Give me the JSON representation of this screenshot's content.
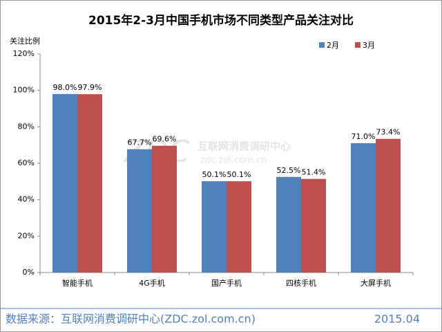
{
  "chart_data": {
    "type": "bar",
    "title": "2015年2-3月中国手机市场不同类型产品关注对比",
    "ylabel": "关注比例",
    "categories": [
      "智能手机",
      "4G手机",
      "国产手机",
      "四核手机",
      "大屏手机"
    ],
    "series": [
      {
        "name": "2月",
        "color": "#4f81bd",
        "values": [
          98.0,
          67.7,
          50.1,
          52.5,
          71.0
        ],
        "value_labels": [
          "98.0%",
          "67.7%",
          "50.1%",
          "52.5%",
          "71.0%"
        ]
      },
      {
        "name": "3月",
        "color": "#c0504d",
        "values": [
          97.9,
          69.6,
          50.1,
          51.4,
          73.4
        ],
        "value_labels": [
          "97.9%",
          "69.6%",
          "50.1%",
          "51.4%",
          "73.4%"
        ]
      }
    ],
    "ylim": [
      0,
      120
    ],
    "yticks": [
      {
        "value": 0,
        "label": "0%"
      },
      {
        "value": 20,
        "label": "20%"
      },
      {
        "value": 40,
        "label": "40%"
      },
      {
        "value": 60,
        "label": "60%"
      },
      {
        "value": 80,
        "label": "80%"
      },
      {
        "value": 100,
        "label": "100%"
      },
      {
        "value": 120,
        "label": "120%"
      }
    ],
    "grid": false,
    "legend": "top-right"
  },
  "watermark": {
    "logo": "ZDC",
    "name": "互联网消费调研中心",
    "url": "zdc.zol.com.cn"
  },
  "footer": {
    "source": "数据来源：互联网消费调研中心(ZDC.zol.com.cn)",
    "date": "2015.04"
  }
}
